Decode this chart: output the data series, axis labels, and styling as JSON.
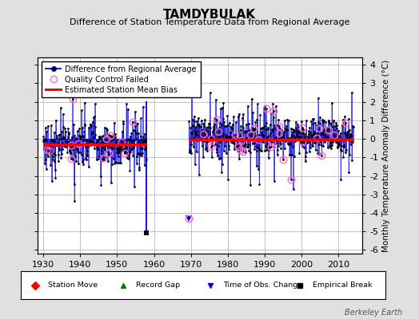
{
  "title": "TAMDYBULAK",
  "subtitle": "Difference of Station Temperature Data from Regional Average",
  "ylabel": "Monthly Temperature Anomaly Difference (°C)",
  "yticks": [
    -6,
    -5,
    -4,
    -3,
    -2,
    -1,
    0,
    1,
    2,
    3,
    4
  ],
  "xticks": [
    1930,
    1940,
    1950,
    1960,
    1970,
    1980,
    1990,
    2000,
    2010
  ],
  "ylim": [
    -6.2,
    4.4
  ],
  "xlim": [
    1928.5,
    2016.5
  ],
  "start_year_1": 1930,
  "end_year_1": 1957.9,
  "start_year_2": 1969.5,
  "end_year_2": 2014,
  "bias_y1": -0.3,
  "bias_y2": -0.05,
  "empirical_break_year": 1958.0,
  "empirical_break_value": -5.1,
  "time_of_obs_year": 1969.5,
  "time_of_obs_value": -4.3,
  "background_color": "#e0e0e0",
  "plot_bg_color": "#ffffff",
  "line_color": "#0000dd",
  "marker_color": "#000000",
  "qc_color": "#ff66cc",
  "bias_color": "#ff0000",
  "grid_color": "#b8b8b8",
  "random_seed": 77
}
